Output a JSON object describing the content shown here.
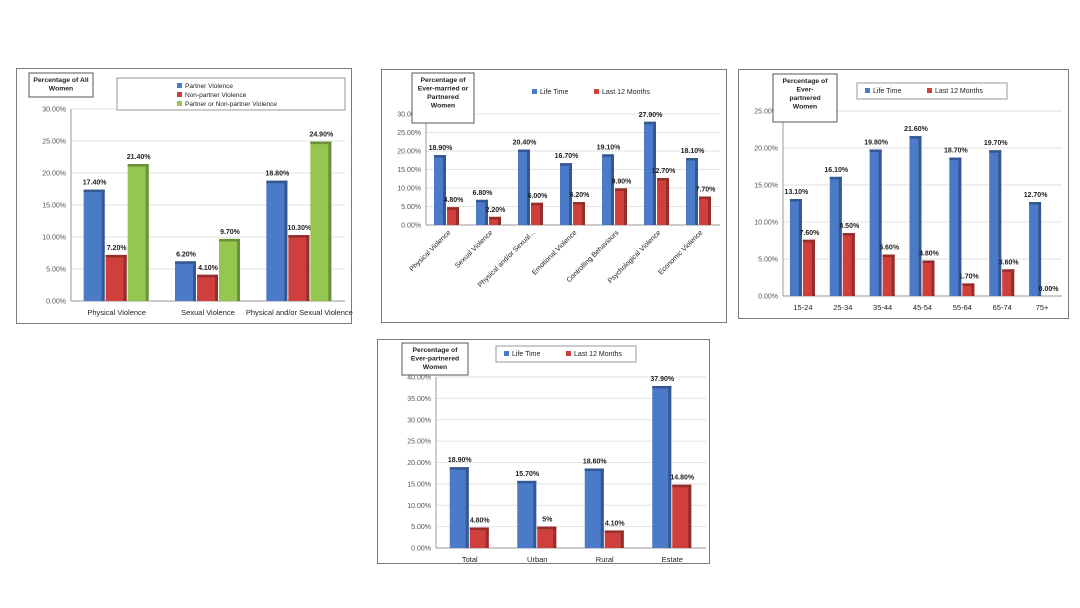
{
  "colors": {
    "blue": "#4a7ac8",
    "red": "#cf3f3c",
    "green": "#95c750",
    "grid": "#e2e2e2",
    "text": "#222222"
  },
  "chart_data": [
    {
      "type": "bar",
      "title": "Percentage of All Women",
      "categories": [
        "Physical Violence",
        "Sexual Violence",
        "Physical and/or Sexual Violence"
      ],
      "series": [
        {
          "name": "Partner Violence",
          "color": "#4a7ac8",
          "values": [
            17.4,
            6.2,
            18.8
          ],
          "labels": [
            "17.40%",
            "6.20%",
            "18.80%"
          ]
        },
        {
          "name": "Non-partner Violence",
          "color": "#cf3f3c",
          "values": [
            7.2,
            4.1,
            10.3
          ],
          "labels": [
            "7.20%",
            "4.10%",
            "10.30%"
          ]
        },
        {
          "name": "Partner or Non-partner Violence",
          "color": "#95c750",
          "values": [
            21.4,
            9.7,
            24.9
          ],
          "labels": [
            "21.40%",
            "9.70%",
            "24.90%"
          ]
        }
      ],
      "yticks": [
        "0.00%",
        "5.00%",
        "10.00%",
        "15.00%",
        "20.00%",
        "25.00%",
        "30.00%"
      ],
      "ylim": [
        0,
        30
      ],
      "legend": "top-right"
    },
    {
      "type": "bar",
      "title": "Percentage of Ever-married or Partnered Women",
      "categories": [
        "Physical Violence",
        "Sexual Violence",
        "Physical and/or Sexual...",
        "Emotional Violence",
        "Controlling Behaviours",
        "Psychological Violence",
        "Economic Violence"
      ],
      "series": [
        {
          "name": "Life Time",
          "color": "#4a7ac8",
          "values": [
            18.9,
            6.8,
            20.4,
            16.7,
            19.1,
            27.9,
            18.1
          ],
          "labels": [
            "18.90%",
            "6.80%",
            "20.40%",
            "16.70%",
            "19.10%",
            "27.90%",
            "18.10%"
          ]
        },
        {
          "name": "Last 12 Months",
          "color": "#cf3f3c",
          "values": [
            4.8,
            2.2,
            6.0,
            6.2,
            9.9,
            12.7,
            7.7
          ],
          "labels": [
            "4.80%",
            "2.20%",
            "6.00%",
            "6.20%",
            "9.90%",
            "12.70%",
            "7.70%"
          ]
        }
      ],
      "yticks": [
        "0.00%",
        "5.00%",
        "10.00%",
        "15.00%",
        "20.00%",
        "25.00%",
        "30.00%"
      ],
      "ylim": [
        0,
        30
      ],
      "legend": "top"
    },
    {
      "type": "bar",
      "title": "Percentage of Ever-partnered Women",
      "categories": [
        "15-24",
        "25-34",
        "35-44",
        "45-54",
        "55-64",
        "65-74",
        "75+"
      ],
      "series": [
        {
          "name": "Life Time",
          "color": "#4a7ac8",
          "values": [
            13.1,
            16.1,
            19.8,
            21.6,
            18.7,
            19.7,
            12.7
          ],
          "labels": [
            "13.10%",
            "16.10%",
            "19.80%",
            "21.60%",
            "18.70%",
            "19.70%",
            "12.70%"
          ]
        },
        {
          "name": "Last 12 Months",
          "color": "#cf3f3c",
          "values": [
            7.6,
            8.5,
            5.6,
            4.8,
            1.7,
            3.6,
            0.0
          ],
          "labels": [
            "7.60%",
            "8.50%",
            "5.60%",
            "4.80%",
            "1.70%",
            "3.60%",
            "0.00%"
          ]
        }
      ],
      "yticks": [
        "0.00%",
        "5.00%",
        "10.00%",
        "15.00%",
        "20.00%",
        "25.00%"
      ],
      "ylim": [
        0,
        25
      ],
      "legend": "top"
    },
    {
      "type": "bar",
      "title": "Percentage of Ever-partnered Women",
      "categories": [
        "Total",
        "Urban",
        "Rural",
        "Estate"
      ],
      "series": [
        {
          "name": "Life Time",
          "color": "#4a7ac8",
          "values": [
            18.9,
            15.7,
            18.6,
            37.9
          ],
          "labels": [
            "18.90%",
            "15.70%",
            "18.60%",
            "37.90%"
          ]
        },
        {
          "name": "Last 12 Months",
          "color": "#cf3f3c",
          "values": [
            4.8,
            5.0,
            4.1,
            14.8
          ],
          "labels": [
            "4.80%",
            "5%",
            "4.10%",
            "14.80%"
          ]
        }
      ],
      "yticks": [
        "0.00%",
        "5.00%",
        "10.00%",
        "15.00%",
        "20.00%",
        "25.00%",
        "30.00%",
        "35.00%",
        "40.00%"
      ],
      "ylim": [
        0,
        40
      ],
      "legend": "top"
    }
  ]
}
